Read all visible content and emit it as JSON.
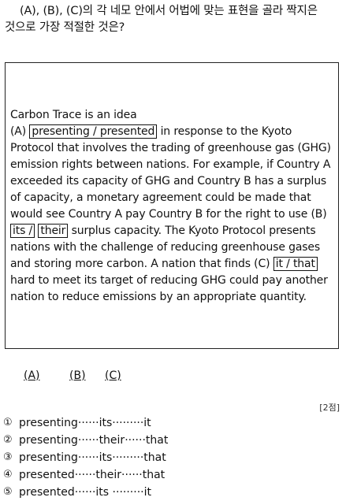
{
  "question": {
    "line1": "(A), (B), (C)의 각 네모 안에서 어법에 맞는 표현을 골라 짝지은",
    "line2": "것으로 가장 적절한 것은?"
  },
  "passage": {
    "intro": "Carbon Trace is an idea",
    "a_label": "(A) ",
    "a_choice": "presenting / presented",
    "seg1": " in response to the Kyoto Protocol that involves the trading of greenhouse gas (GHG) emission rights between nations. For example, if Country A exceeded its capacity of GHG and Country B has a surplus of capacity, a monetary agreement could be made that would see Country A pay Country B for the right to use (B) ",
    "b_choice_1": "its /",
    "b_choice_2": "their",
    "seg2": " surplus capacity. The Kyoto Protocol presents nations with the challenge of reducing greenhouse gases and storing more carbon. A nation that finds (C) ",
    "c_choice": "it / that",
    "seg3": " hard to meet its target of reducing GHG could pay another nation to reduce emissions by an appropriate quantity."
  },
  "headers": {
    "a": "(A)",
    "b": "(B)",
    "c": "(C)"
  },
  "points": "[2점]",
  "options": [
    {
      "num": "①",
      "text": "presenting······its·········it"
    },
    {
      "num": "②",
      "text": "presenting······their······that"
    },
    {
      "num": "③",
      "text": "presenting······its·········that"
    },
    {
      "num": "④",
      "text": "presented······their······that"
    },
    {
      "num": "⑤",
      "text": "presented······its ·········it"
    }
  ]
}
